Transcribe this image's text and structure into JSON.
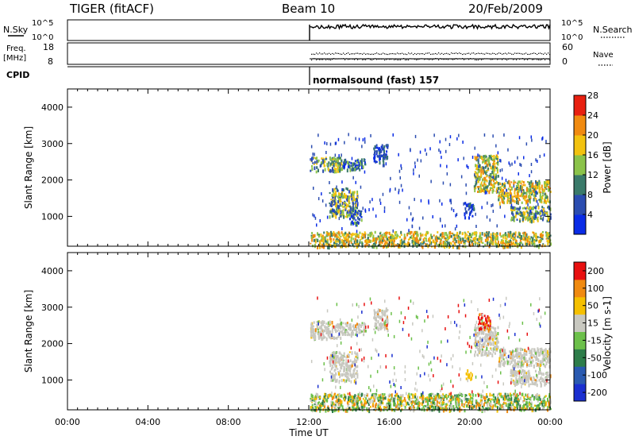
{
  "header": {
    "station": "TIGER (fitACF)",
    "beam": "Beam 10",
    "date": "20/Feb/2009"
  },
  "top_panels": {
    "nsky_label": "N.Sky",
    "nsky_ticks": [
      "10^5",
      "10^0"
    ],
    "nsearch_label": "N.Search",
    "nsearch_ticks": [
      "10^5",
      "10^0"
    ],
    "freq_label": "Freq.",
    "freq_unit": "[MHz]",
    "freq_ticks": [
      "18",
      "8"
    ],
    "nave_label": "Nave",
    "nave_ticks": [
      "60",
      "0"
    ],
    "cpid_label": "CPID",
    "cpid_text": "normalsound (fast) 157"
  },
  "chart_data": [
    {
      "type": "heatmap",
      "name": "power",
      "ylabel": "Slant Range [km]",
      "yticks": [
        1000,
        2000,
        3000,
        4000
      ],
      "ylim": [
        180,
        4500
      ],
      "xlim": [
        0,
        24
      ],
      "data_start_hour": 12,
      "colorbar": {
        "label": "Power [dB]",
        "ticks": [
          "4",
          "8",
          "12",
          "16",
          "20",
          "24",
          "28"
        ],
        "colors": [
          "#0a2ce6",
          "#2b4db0",
          "#3a7a6a",
          "#8bc34a",
          "#f2c20f",
          "#f08a10",
          "#e82010"
        ]
      },
      "regions": [
        {
          "t0": 12.05,
          "t1": 13.6,
          "r0": 2250,
          "r1": 2650,
          "level": 3
        },
        {
          "t0": 13.6,
          "t1": 14.8,
          "r0": 2300,
          "r1": 2600,
          "level": 2
        },
        {
          "t0": 15.2,
          "t1": 15.9,
          "r0": 2500,
          "r1": 3000,
          "level": 1
        },
        {
          "t0": 13.0,
          "t1": 14.4,
          "r0": 1000,
          "r1": 1800,
          "level": 3
        },
        {
          "t0": 14.0,
          "t1": 14.6,
          "r0": 800,
          "r1": 1200,
          "level": 2
        },
        {
          "t0": 19.7,
          "t1": 20.2,
          "r0": 1000,
          "r1": 1400,
          "level": 1
        },
        {
          "t0": 20.2,
          "t1": 21.4,
          "r0": 1700,
          "r1": 2700,
          "level": 4
        },
        {
          "t0": 21.4,
          "t1": 24.0,
          "r0": 1400,
          "r1": 2000,
          "level": 4
        },
        {
          "t0": 22.0,
          "t1": 24.0,
          "r0": 900,
          "r1": 1300,
          "level": 3
        },
        {
          "t0": 12.05,
          "t1": 24.0,
          "r0": 190,
          "r1": 600,
          "level": 4
        }
      ]
    },
    {
      "type": "heatmap",
      "name": "velocity",
      "ylabel": "Slant Range [km]",
      "yticks": [
        1000,
        2000,
        3000,
        4000
      ],
      "ylim": [
        180,
        4500
      ],
      "xlim": [
        0,
        24
      ],
      "xticks": [
        "00:00",
        "04:00",
        "08:00",
        "12:00",
        "16:00",
        "20:00",
        "00:00"
      ],
      "xlabel": "Time UT",
      "colorbar": {
        "label": "Velocity [m s-1]",
        "ticks": [
          "200",
          "100",
          "50",
          "15",
          "-15",
          "-50",
          "-100",
          "-200"
        ],
        "colors": [
          "#1a2fd0",
          "#2a5ab0",
          "#2e7d4a",
          "#6cc04a",
          "#c8c8c0",
          "#f5c000",
          "#f08a10",
          "#e81010"
        ]
      },
      "regions": [
        {
          "t0": 12.05,
          "t1": 13.6,
          "r0": 2150,
          "r1": 2650,
          "kind": "grey"
        },
        {
          "t0": 13.6,
          "t1": 14.8,
          "r0": 2250,
          "r1": 2600,
          "kind": "grey"
        },
        {
          "t0": 13.0,
          "t1": 14.4,
          "r0": 1000,
          "r1": 1800,
          "kind": "grey"
        },
        {
          "t0": 15.2,
          "t1": 15.9,
          "r0": 2400,
          "r1": 3000,
          "kind": "grey"
        },
        {
          "t0": 20.2,
          "t1": 21.4,
          "r0": 1700,
          "r1": 2500,
          "kind": "grey"
        },
        {
          "t0": 21.4,
          "t1": 24.0,
          "r0": 1400,
          "r1": 1900,
          "kind": "grey"
        },
        {
          "t0": 22.0,
          "t1": 24.0,
          "r0": 900,
          "r1": 1300,
          "kind": "grey"
        },
        {
          "t0": 20.4,
          "t1": 21.0,
          "r0": 2400,
          "r1": 2850,
          "kind": "red"
        },
        {
          "t0": 19.8,
          "t1": 20.1,
          "r0": 1050,
          "r1": 1300,
          "kind": "orange"
        },
        {
          "t0": 12.05,
          "t1": 24.0,
          "r0": 190,
          "r1": 650,
          "kind": "ground"
        }
      ]
    }
  ]
}
